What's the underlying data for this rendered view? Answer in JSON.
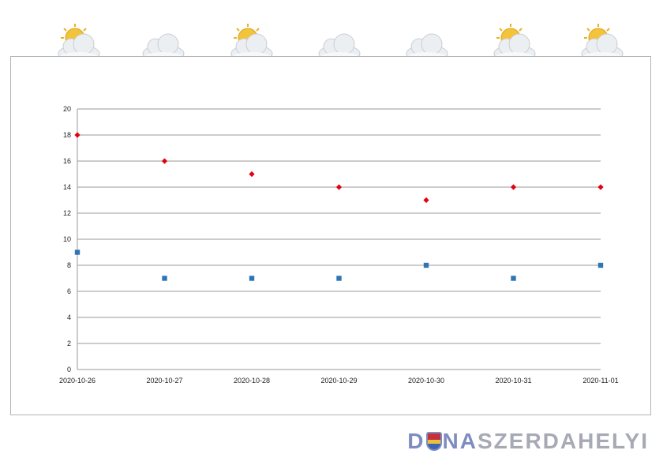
{
  "weather": {
    "icons": [
      "partly-sunny-icon",
      "cloudy-icon",
      "partly-sunny-icon",
      "rain-icon",
      "rain-icon",
      "sun-rain-icon",
      "partly-sunny-icon"
    ]
  },
  "chart_data": {
    "type": "scatter",
    "title": "",
    "xlabel": "",
    "ylabel": "",
    "categories": [
      "2020-10-26",
      "2020-10-27",
      "2020-10-28",
      "2020-10-29",
      "2020-10-30",
      "2020-10-31",
      "2020-11-01"
    ],
    "series": [
      {
        "values": [
          18,
          16,
          15,
          14,
          13,
          14,
          14
        ],
        "color": "#e3000f",
        "marker": "diamond"
      },
      {
        "values": [
          9,
          7,
          7,
          7,
          8,
          7,
          8
        ],
        "color": "#2e75b6",
        "marker": "square"
      }
    ],
    "ylim": [
      0,
      20
    ],
    "yticks": [
      0,
      2,
      4,
      6,
      8,
      10,
      12,
      14,
      16,
      18,
      20
    ],
    "grid": true,
    "legend": "none"
  },
  "logo": {
    "part1": "D",
    "part2": "NA",
    "part3": "SZERDAHELYI"
  }
}
